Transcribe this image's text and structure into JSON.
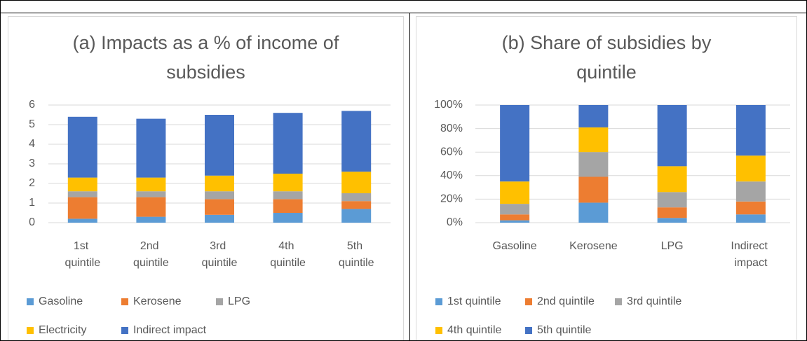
{
  "chart_data": [
    {
      "type": "stacked_bar",
      "title": "(a) Impacts as a % of income of subsidies",
      "categories": [
        "1st quintile",
        "2nd quintile",
        "3rd quintile",
        "4th quintile",
        "5th quintile"
      ],
      "series": [
        {
          "name": "Gasoline",
          "color": "#5b9bd5",
          "values": [
            0.2,
            0.3,
            0.4,
            0.5,
            0.7
          ]
        },
        {
          "name": "Kerosene",
          "color": "#ed7d31",
          "values": [
            1.1,
            1.0,
            0.8,
            0.7,
            0.4
          ]
        },
        {
          "name": "LPG",
          "color": "#a5a5a5",
          "values": [
            0.3,
            0.3,
            0.4,
            0.4,
            0.4
          ]
        },
        {
          "name": "Electricity",
          "color": "#ffc000",
          "values": [
            0.7,
            0.7,
            0.8,
            0.9,
            1.1
          ]
        },
        {
          "name": "Indirect impact",
          "color": "#4472c4",
          "values": [
            3.1,
            3.0,
            3.1,
            3.1,
            3.1
          ]
        }
      ],
      "ylim": [
        0,
        6
      ],
      "yticks": [
        0,
        1,
        2,
        3,
        4,
        5,
        6
      ],
      "grid": true,
      "legend": "bottom"
    },
    {
      "type": "stacked_bar",
      "title": "(b) Share of subsidies by quintile",
      "categories": [
        "Gasoline",
        "Kerosene",
        "LPG",
        "Indirect impact"
      ],
      "series": [
        {
          "name": "1st quintile",
          "color": "#5b9bd5",
          "values": [
            2,
            17,
            4,
            7
          ]
        },
        {
          "name": "2nd quintile",
          "color": "#ed7d31",
          "values": [
            5,
            22,
            9,
            11
          ]
        },
        {
          "name": "3rd quintile",
          "color": "#a5a5a5",
          "values": [
            9,
            21,
            13,
            17
          ]
        },
        {
          "name": "4th quintile",
          "color": "#ffc000",
          "values": [
            19,
            21,
            22,
            22
          ]
        },
        {
          "name": "5th quintile",
          "color": "#4472c4",
          "values": [
            65,
            19,
            52,
            43
          ]
        }
      ],
      "ylim": [
        0,
        100
      ],
      "yticks": [
        {
          "value": 0,
          "label": "0%"
        },
        {
          "value": 20,
          "label": "20%"
        },
        {
          "value": 40,
          "label": "40%"
        },
        {
          "value": 60,
          "label": "60%"
        },
        {
          "value": 80,
          "label": "80%"
        },
        {
          "value": 100,
          "label": "100%"
        }
      ],
      "grid": true,
      "legend": "bottom"
    }
  ]
}
